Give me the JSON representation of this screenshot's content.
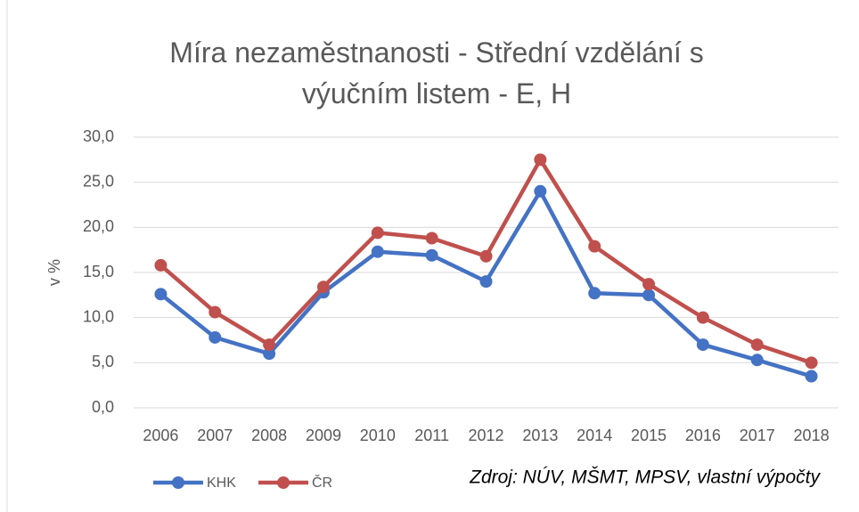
{
  "chart_data": {
    "type": "line",
    "title": "Míra nezaměstnanosti - Střední vzdělání s výučním listem - E, H",
    "ylabel": "v %",
    "annotation": "Zdroj: NÚV, MŠMT, MPSV, vlastní výpočty",
    "categories": [
      "2006",
      "2007",
      "2008",
      "2009",
      "2010",
      "2011",
      "2012",
      "2013",
      "2014",
      "2015",
      "2016",
      "2017",
      "2018"
    ],
    "series": [
      {
        "name": "KHK",
        "color": "#4472c4",
        "values": [
          12.6,
          7.8,
          6.0,
          12.8,
          17.3,
          16.9,
          14.0,
          24.0,
          12.7,
          12.5,
          7.0,
          5.3,
          3.5
        ]
      },
      {
        "name": "ČR",
        "color": "#c0504d",
        "values": [
          15.8,
          10.6,
          7.0,
          13.4,
          19.4,
          18.8,
          16.8,
          27.5,
          17.9,
          13.7,
          10.0,
          7.0,
          5.0
        ]
      }
    ],
    "ylim": [
      0,
      30
    ],
    "yticks": [
      {
        "value": 0,
        "label": "0,0"
      },
      {
        "value": 5,
        "label": "5,0"
      },
      {
        "value": 10,
        "label": "10,0"
      },
      {
        "value": 15,
        "label": "15,0"
      },
      {
        "value": 20,
        "label": "20,0"
      },
      {
        "value": 25,
        "label": "25,0"
      },
      {
        "value": 30,
        "label": "30,0"
      }
    ],
    "grid": true,
    "legend": "bottom-left"
  }
}
